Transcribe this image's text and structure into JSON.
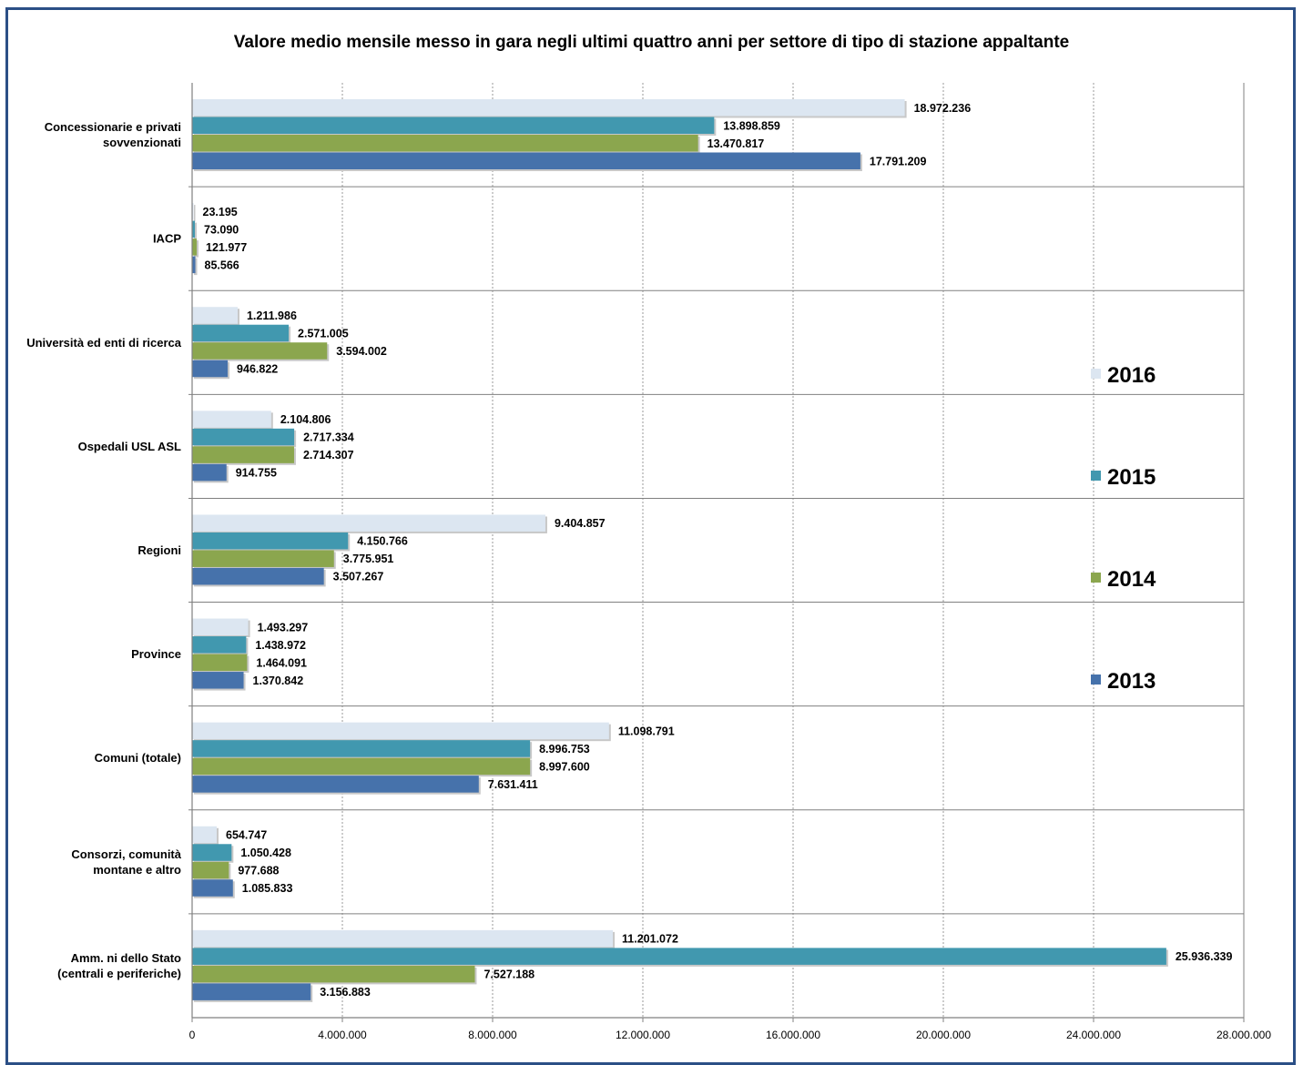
{
  "chart_data": {
    "type": "bar",
    "orientation": "horizontal",
    "title": "Valore medio mensile messo in gara negli ultimi quattro anni per settore di tipo di stazione appaltante",
    "xlim": [
      0,
      28000000
    ],
    "xticks": [
      0,
      4000000,
      8000000,
      12000000,
      16000000,
      20000000,
      24000000,
      28000000
    ],
    "xtick_labels": [
      "0",
      "4.000.000",
      "8.000.000",
      "12.000.000",
      "16.000.000",
      "20.000.000",
      "24.000.000",
      "28.000.000"
    ],
    "grid": "vertical dashed",
    "legend_position": "right",
    "categories": [
      [
        "Concessionarie e privati",
        "sovvenzionati"
      ],
      [
        "IACP"
      ],
      [
        "Università ed enti di ricerca"
      ],
      [
        "Ospedali USL ASL"
      ],
      [
        "Regioni"
      ],
      [
        "Province"
      ],
      [
        "Comuni (totale)"
      ],
      [
        "Consorzi, comunità",
        "montane e altro"
      ],
      [
        "Amm. ni dello Stato",
        "(centrali e periferiche)"
      ]
    ],
    "series": [
      {
        "name": "2016",
        "color": "#dce6f1",
        "values": [
          18972236,
          23195,
          1211986,
          2104806,
          9404857,
          1493297,
          11098791,
          654747,
          11201072
        ],
        "labels": [
          "18.972.236",
          "23.195",
          "1.211.986",
          "2.104.806",
          "9.404.857",
          "1.493.297",
          "11.098.791",
          "654.747",
          "11.201.072"
        ]
      },
      {
        "name": "2015",
        "color": "#4198af",
        "values": [
          13898859,
          73090,
          2571005,
          2717334,
          4150766,
          1438972,
          8996753,
          1050428,
          25936339
        ],
        "labels": [
          "13.898.859",
          "73.090",
          "2.571.005",
          "2.717.334",
          "4.150.766",
          "1.438.972",
          "8.996.753",
          "1.050.428",
          "25.936.339"
        ]
      },
      {
        "name": "2014",
        "color": "#8ba64e",
        "values": [
          13470817,
          121977,
          3594002,
          2714307,
          3775951,
          1464091,
          8997600,
          977688,
          7527188
        ],
        "labels": [
          "13.470.817",
          "121.977",
          "3.594.002",
          "2.714.307",
          "3.775.951",
          "1.464.091",
          "8.997.600",
          "977.688",
          "7.527.188"
        ]
      },
      {
        "name": "2013",
        "color": "#4672ab",
        "values": [
          17791209,
          85566,
          946822,
          914755,
          3507267,
          1370842,
          7631411,
          1085833,
          3156883
        ],
        "labels": [
          "17.791.209",
          "85.566",
          "946.822",
          "914.755",
          "3.507.267",
          "1.370.842",
          "7.631.411",
          "1.085.833",
          "3.156.883"
        ]
      }
    ]
  }
}
